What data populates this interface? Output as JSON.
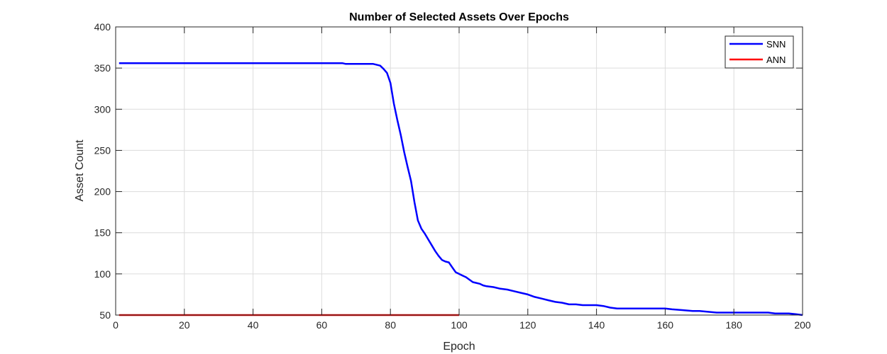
{
  "chart_data": {
    "type": "line",
    "title": "Number of Selected Assets Over Epochs",
    "xlabel": "Epoch",
    "ylabel": "Asset Count",
    "xlim": [
      0,
      200
    ],
    "ylim": [
      50,
      400
    ],
    "xticks": [
      0,
      20,
      40,
      60,
      80,
      100,
      120,
      140,
      160,
      180,
      200
    ],
    "yticks": [
      50,
      100,
      150,
      200,
      250,
      300,
      350,
      400
    ],
    "grid": true,
    "legend_position": "top-right",
    "series": [
      {
        "name": "SNN",
        "color": "#0000ff",
        "x": [
          1,
          66,
          67,
          75,
          77,
          78,
          79,
          80,
          81,
          82,
          83,
          84,
          85,
          86,
          87,
          88,
          89,
          90,
          91,
          92,
          93,
          94,
          95,
          96,
          97,
          98,
          99,
          100,
          101,
          102,
          103,
          104,
          105,
          106,
          107,
          108,
          110,
          112,
          114,
          116,
          118,
          120,
          122,
          124,
          126,
          128,
          130,
          132,
          134,
          136,
          138,
          140,
          142,
          144,
          146,
          150,
          155,
          160,
          162,
          165,
          168,
          170,
          175,
          180,
          185,
          190,
          192,
          196,
          198,
          200
        ],
        "y": [
          356,
          356,
          355,
          355,
          353,
          349,
          344,
          332,
          307,
          287,
          269,
          248,
          230,
          213,
          187,
          165,
          155,
          149,
          142,
          135,
          128,
          122,
          117,
          115,
          114,
          108,
          102,
          100,
          98,
          96,
          93,
          90,
          89,
          88,
          86,
          85,
          84,
          82,
          81,
          79,
          77,
          75,
          72,
          70,
          68,
          66,
          65,
          63,
          63,
          62,
          62,
          62,
          61,
          59,
          58,
          58,
          58,
          58,
          57,
          56,
          55,
          55,
          53,
          53,
          53,
          53,
          52,
          52,
          51,
          50
        ]
      },
      {
        "name": "ANN",
        "color": "#ff0000",
        "x": [
          1,
          100
        ],
        "y": [
          50,
          50
        ]
      }
    ]
  }
}
